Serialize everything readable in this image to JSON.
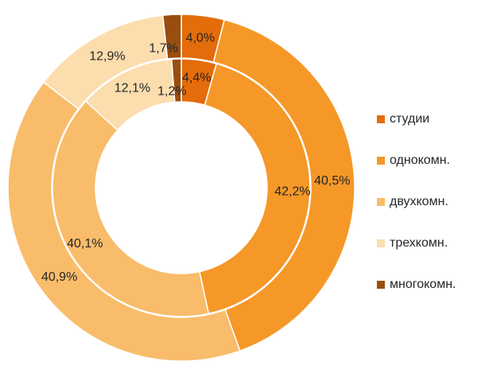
{
  "chart_data": {
    "type": "doughnut",
    "categories": [
      "студии",
      "однокомн.",
      "двухкомн.",
      "трехкомн.",
      "многокомн."
    ],
    "colors": [
      "#E46C0A",
      "#F59828",
      "#F9BC6A",
      "#FCDDAE",
      "#994D0E"
    ],
    "series": [
      {
        "ring": "outer",
        "values": [
          4.0,
          40.5,
          40.9,
          12.9,
          1.7
        ],
        "labels": [
          "4,0%",
          "40,5%",
          "40,9%",
          "12,9%",
          "1,7%"
        ]
      },
      {
        "ring": "inner",
        "values": [
          4.4,
          42.2,
          40.1,
          12.1,
          1.2
        ],
        "labels": [
          "4,4%",
          "42,2%",
          "40,1%",
          "12,1%",
          "1,2%"
        ]
      }
    ],
    "legend_position": "right"
  },
  "legend": {
    "items": [
      {
        "label": "студии",
        "color": "#E46C0A"
      },
      {
        "label": "однокомн.",
        "color": "#F59828"
      },
      {
        "label": "двухкомн.",
        "color": "#F9BC6A"
      },
      {
        "label": "трехкомн.",
        "color": "#FCDDAE"
      },
      {
        "label": "многокомн.",
        "color": "#994D0E"
      }
    ]
  }
}
